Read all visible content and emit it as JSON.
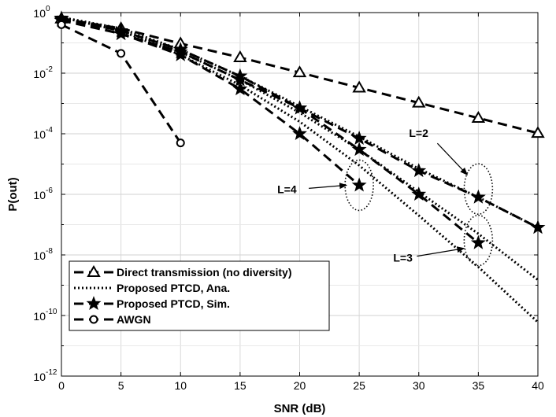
{
  "chart_data": {
    "type": "line",
    "title": "",
    "xlabel": "SNR (dB)",
    "ylabel": "P(out)",
    "xlim": [
      0,
      40
    ],
    "ylim_log10": [
      -12,
      0
    ],
    "yscale": "log",
    "grid": true,
    "legend_position": "bottom-left",
    "x_ticks": [
      "0",
      "5",
      "10",
      "15",
      "20",
      "25",
      "30",
      "35",
      "40"
    ],
    "y_ticks": [
      {
        "base": "10",
        "exp": "0"
      },
      {
        "base": "10",
        "exp": "-2"
      },
      {
        "base": "10",
        "exp": "-4"
      },
      {
        "base": "10",
        "exp": "-6"
      },
      {
        "base": "10",
        "exp": "-8"
      },
      {
        "base": "10",
        "exp": "-10"
      },
      {
        "base": "10",
        "exp": "-12"
      }
    ],
    "legend": [
      {
        "label": "Direct transmission (no diversity)",
        "style": "dashed",
        "marker": "triangle"
      },
      {
        "label": "Proposed PTCD, Ana.",
        "style": "dotted",
        "marker": "none"
      },
      {
        "label": "Proposed PTCD, Sim.",
        "style": "dashed",
        "marker": "star"
      },
      {
        "label": "AWGN",
        "style": "dashed",
        "marker": "circle"
      }
    ],
    "series": [
      {
        "name": "Direct transmission (no diversity)",
        "style": "dashed",
        "marker": "triangle",
        "x": [
          0,
          5,
          10,
          15,
          20,
          25,
          30,
          35,
          40
        ],
        "y": [
          0.63,
          0.3,
          0.095,
          0.033,
          0.0105,
          0.0033,
          0.00105,
          0.00033,
          0.000105
        ]
      },
      {
        "name": "Proposed PTCD, Ana. L=2",
        "style": "dotted",
        "marker": "none",
        "x": [
          0,
          5,
          10,
          15,
          20,
          25,
          30,
          35,
          40
        ],
        "y": [
          0.7,
          0.3,
          0.06,
          0.008,
          0.0008,
          8e-05,
          7e-06,
          8e-07,
          8e-08
        ]
      },
      {
        "name": "Proposed PTCD, Ana. L=3",
        "style": "dotted",
        "marker": "none",
        "x": [
          0,
          5,
          10,
          15,
          20,
          25,
          30,
          35,
          40
        ],
        "y": [
          0.7,
          0.25,
          0.05,
          0.006,
          0.0005,
          3e-05,
          1.2e-06,
          5e-08,
          1.5e-09
        ]
      },
      {
        "name": "Proposed PTCD, Ana. L=4",
        "style": "dotted",
        "marker": "none",
        "x": [
          0,
          5,
          10,
          15,
          20,
          25,
          30,
          35,
          40
        ],
        "y": [
          0.7,
          0.25,
          0.04,
          0.004,
          0.00025,
          9e-06,
          2e-07,
          4e-09,
          6e-11
        ]
      },
      {
        "name": "Proposed PTCD, Sim. L=2",
        "style": "dashed",
        "marker": "star",
        "x": [
          0,
          5,
          10,
          15,
          20,
          25,
          30,
          35,
          40
        ],
        "y": [
          0.65,
          0.25,
          0.06,
          0.008,
          0.0007,
          7e-05,
          6e-06,
          8e-07,
          8e-08
        ]
      },
      {
        "name": "Proposed PTCD, Sim. L=3",
        "style": "dashed",
        "marker": "star",
        "x": [
          0,
          5,
          10,
          15,
          20,
          25,
          30,
          35
        ],
        "y": [
          0.6,
          0.2,
          0.05,
          0.006,
          0.0007,
          3e-05,
          1e-06,
          2.5e-08
        ]
      },
      {
        "name": "Proposed PTCD, Sim. L=4",
        "style": "dashed",
        "marker": "star",
        "x": [
          0,
          5,
          10,
          15,
          20,
          25
        ],
        "y": [
          0.55,
          0.2,
          0.04,
          0.003,
          0.0001,
          2e-06
        ]
      },
      {
        "name": "AWGN",
        "style": "dashed",
        "marker": "circle",
        "x": [
          0,
          5,
          10
        ],
        "y": [
          0.4,
          0.045,
          5e-05
        ]
      }
    ],
    "annotations": [
      {
        "text": "L=2",
        "points_to": {
          "x": 35,
          "y": 1.5e-06
        }
      },
      {
        "text": "L=3",
        "points_to": {
          "x": 35,
          "y": 3e-08
        }
      },
      {
        "text": "L=4",
        "points_to": {
          "x": 25,
          "y": 2e-06
        }
      }
    ],
    "ellipses": [
      {
        "cx": 35,
        "cy": 1.5e-06,
        "label": "L=2"
      },
      {
        "cx": 35,
        "cy": 3e-08,
        "label": "L=3"
      },
      {
        "cx": 25,
        "cy": 2e-06,
        "label": "L=4"
      }
    ]
  }
}
